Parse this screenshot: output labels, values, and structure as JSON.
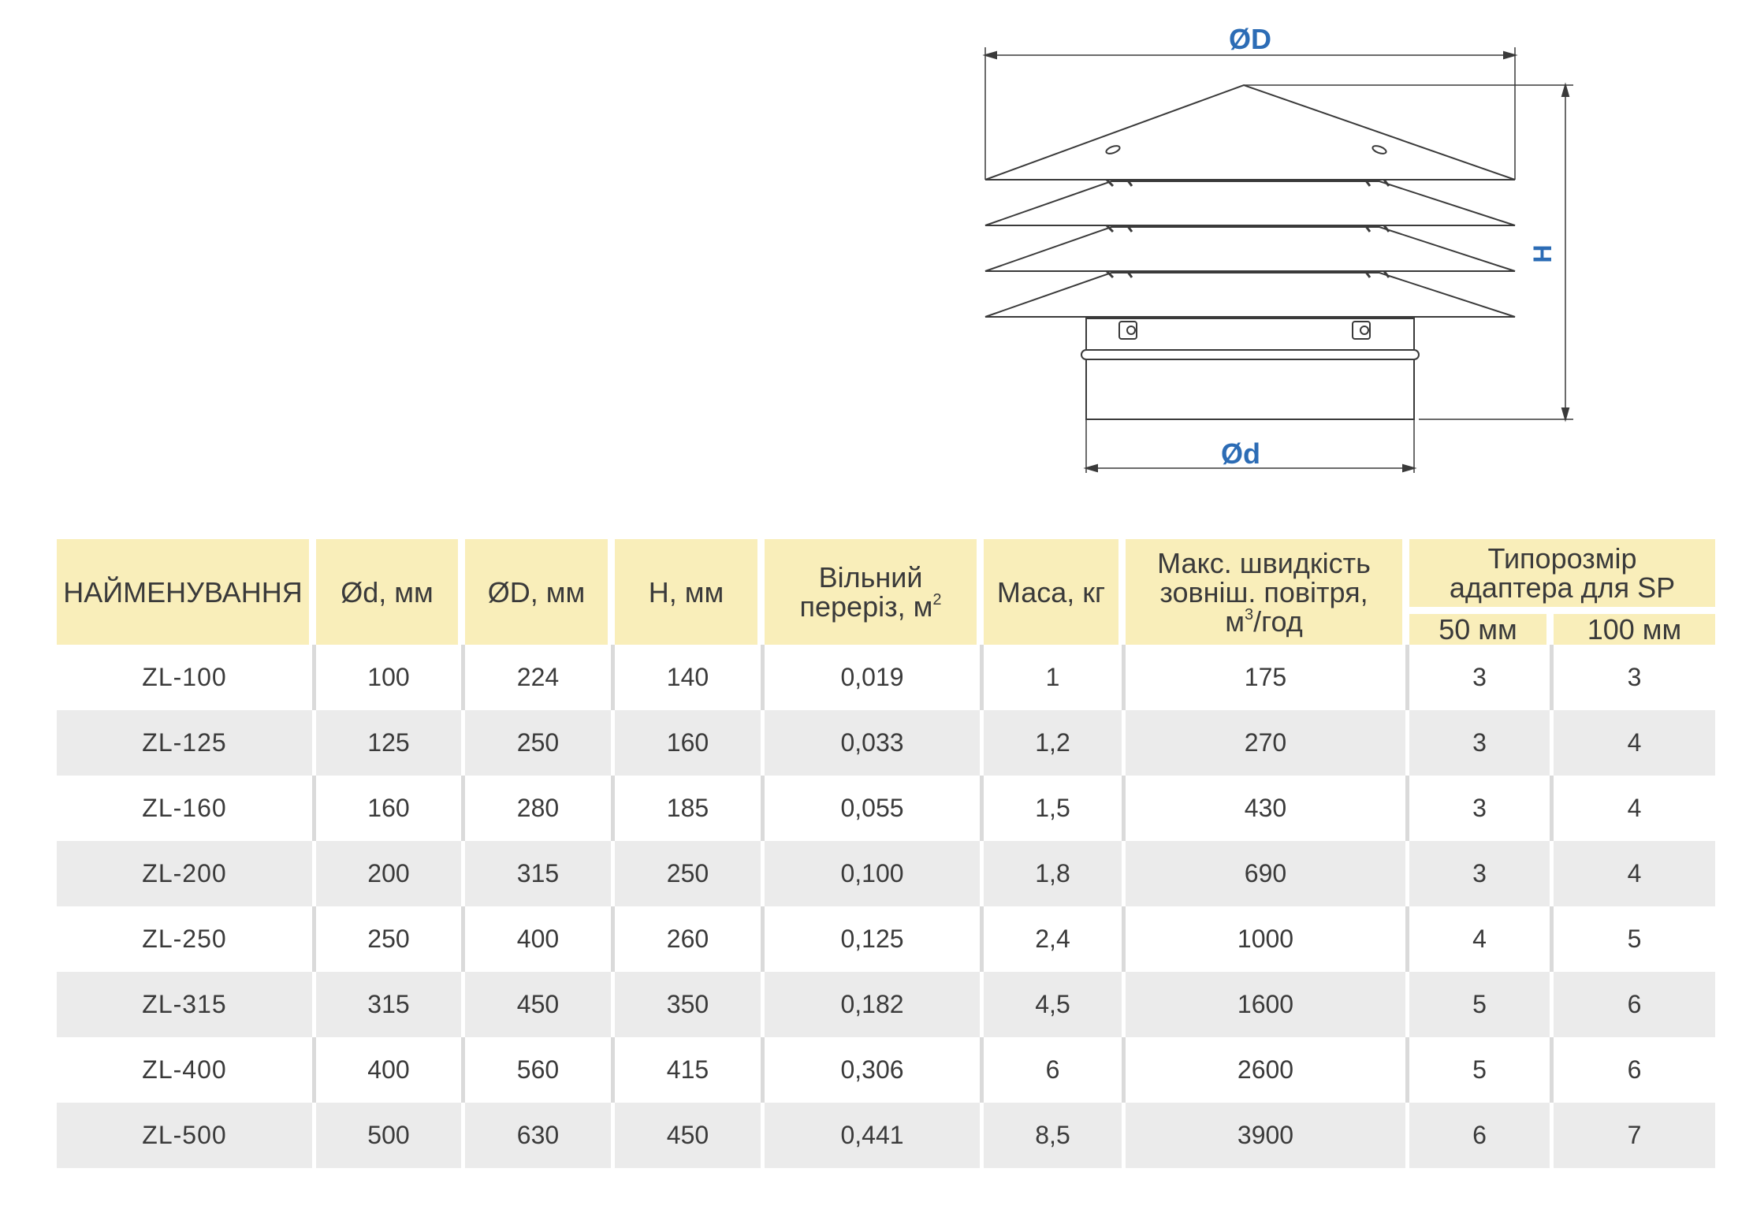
{
  "drawing": {
    "label_D": "ØD",
    "label_d": "Ød",
    "label_H": "H",
    "label_color": "#2c6cb5"
  },
  "table": {
    "headers": {
      "name": "НАЙМЕНУВАННЯ",
      "d": "Ød, мм",
      "D": "ØD, мм",
      "H": "H, мм",
      "area_line1": "Вільний",
      "area_line2": "переріз, м",
      "area_sup": "2",
      "mass": "Маса, кг",
      "flow_line1": "Макс. швидкість",
      "flow_line2": "зовніш. повітря,",
      "flow_line3_pre": "м",
      "flow_sup": "3",
      "flow_line3_post": "/год",
      "adapter_line1": "Типорозмір",
      "adapter_line2": "адаптера для SP",
      "sub_50": "50 мм",
      "sub_100": "100 мм"
    },
    "rows": [
      {
        "name": "ZL-100",
        "d": "100",
        "D": "224",
        "H": "140",
        "area": "0,019",
        "mass": "1",
        "flow": "175",
        "a50": "3",
        "a100": "3"
      },
      {
        "name": "ZL-125",
        "d": "125",
        "D": "250",
        "H": "160",
        "area": "0,033",
        "mass": "1,2",
        "flow": "270",
        "a50": "3",
        "a100": "4"
      },
      {
        "name": "ZL-160",
        "d": "160",
        "D": "280",
        "H": "185",
        "area": "0,055",
        "mass": "1,5",
        "flow": "430",
        "a50": "3",
        "a100": "4"
      },
      {
        "name": "ZL-200",
        "d": "200",
        "D": "315",
        "H": "250",
        "area": "0,100",
        "mass": "1,8",
        "flow": "690",
        "a50": "3",
        "a100": "4"
      },
      {
        "name": "ZL-250",
        "d": "250",
        "D": "400",
        "H": "260",
        "area": "0,125",
        "mass": "2,4",
        "flow": "1000",
        "a50": "4",
        "a100": "5"
      },
      {
        "name": "ZL-315",
        "d": "315",
        "D": "450",
        "H": "350",
        "area": "0,182",
        "mass": "4,5",
        "flow": "1600",
        "a50": "5",
        "a100": "6"
      },
      {
        "name": "ZL-400",
        "d": "400",
        "D": "560",
        "H": "415",
        "area": "0,306",
        "mass": "6",
        "flow": "2600",
        "a50": "5",
        "a100": "6"
      },
      {
        "name": "ZL-500",
        "d": "500",
        "D": "630",
        "H": "450",
        "area": "0,441",
        "mass": "8,5",
        "flow": "3900",
        "a50": "6",
        "a100": "7"
      }
    ],
    "colors": {
      "header_bg": "#f9eeba",
      "name_text": "#e8d31a",
      "stripe_bg": "#ebebeb"
    }
  }
}
